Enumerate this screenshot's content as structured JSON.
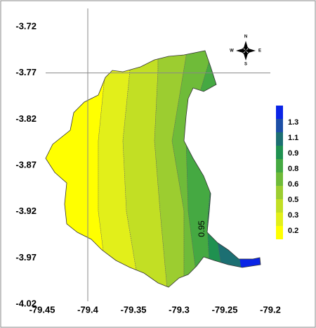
{
  "map": {
    "xlim": [
      -79.45,
      -79.2
    ],
    "ylim": [
      -3.72,
      -4.02
    ],
    "xticks": [
      -79.45,
      -79.4,
      -79.35,
      -79.3,
      -79.25,
      -79.2
    ],
    "yticks": [
      -3.72,
      -3.77,
      -3.82,
      -3.87,
      -3.92,
      -3.97,
      -4.02
    ],
    "legend": {
      "labels": [
        "0.2",
        "0.3",
        "0.5",
        "0.6",
        "0.8",
        "0.9",
        "1.1",
        "1.3"
      ],
      "colors": [
        "#ffff00",
        "#e2ef1a",
        "#c2df24",
        "#9ccd30",
        "#6fbb39",
        "#45a942",
        "#1f9150",
        "#1c6f72",
        "#1c4fa6",
        "#0a24e6"
      ]
    },
    "contour_label": "0.95",
    "compass": {
      "north": "N",
      "south": "S",
      "west": "W",
      "east": "E"
    }
  }
}
